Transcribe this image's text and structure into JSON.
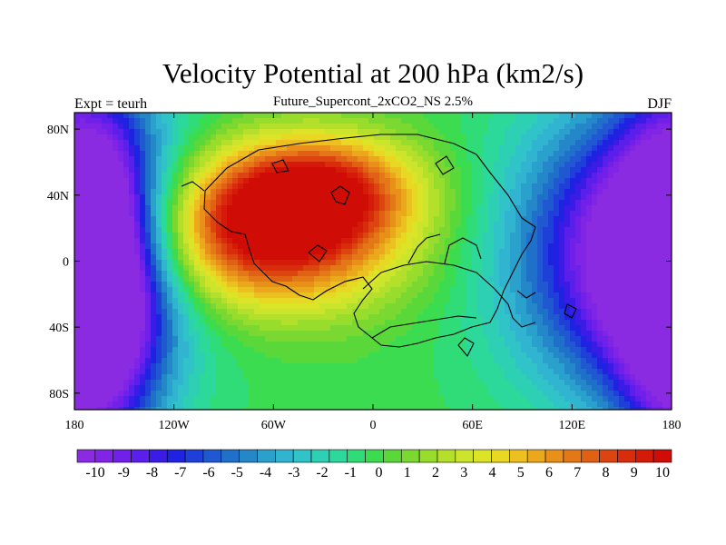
{
  "title": "Velocity Potential at 200 hPa (km2/s)",
  "subtitle": "Future_Supercont_2xCO2_NS 2.5%",
  "left_label": "Expt = teurh",
  "right_label": "DJF",
  "x_ticks": [
    {
      "lon": -180,
      "label": "180"
    },
    {
      "lon": -120,
      "label": "120W"
    },
    {
      "lon": -60,
      "label": "60W"
    },
    {
      "lon": 0,
      "label": "0"
    },
    {
      "lon": 60,
      "label": "60E"
    },
    {
      "lon": 120,
      "label": "120E"
    },
    {
      "lon": 180,
      "label": "180"
    }
  ],
  "y_ticks": [
    {
      "lat": 80,
      "label": "80N"
    },
    {
      "lat": 40,
      "label": "40N"
    },
    {
      "lat": 0,
      "label": "0"
    },
    {
      "lat": -40,
      "label": "40S"
    },
    {
      "lat": -80,
      "label": "80S"
    }
  ],
  "colorbar": {
    "labels": [
      "-10",
      "-9",
      "-8",
      "-7",
      "-6",
      "-5",
      "-4",
      "-3",
      "-2",
      "-1",
      "0",
      "1",
      "2",
      "3",
      "4",
      "5",
      "6",
      "7",
      "8",
      "9",
      "10"
    ],
    "colors": [
      "#8a2be2",
      "#8025e6",
      "#7020e8",
      "#5a1fea",
      "#3a1ce6",
      "#1f22e0",
      "#1f40d8",
      "#1f58d0",
      "#1f70c8",
      "#2488c8",
      "#2aa0cc",
      "#30b4d0",
      "#30c4c8",
      "#2ed0b4",
      "#2cd89a",
      "#30dc78",
      "#3cdc50",
      "#5ad83a",
      "#7ad830",
      "#98dc2c",
      "#b4e02c",
      "#cce42c",
      "#dce428",
      "#e8d824",
      "#ecc020",
      "#eca81c",
      "#e8901a",
      "#e47818",
      "#e06014",
      "#dc4410",
      "#d82c0c",
      "#d41a08",
      "#d00c06"
    ]
  },
  "map": {
    "lon_range": [
      -180,
      180
    ],
    "lat_range": [
      -90,
      90
    ],
    "field_range": [
      -10,
      10
    ],
    "field_centers": [
      {
        "lon": -65,
        "lat": 18,
        "value": 11,
        "sx": 55,
        "sy": 32
      },
      {
        "lon": -30,
        "lat": 45,
        "value": 6,
        "sx": 40,
        "sy": 22
      },
      {
        "lon": -170,
        "lat": -15,
        "value": -10.5,
        "sx": 28,
        "sy": 80
      },
      {
        "lon": 165,
        "lat": 5,
        "value": -11,
        "sx": 55,
        "sy": 60
      }
    ]
  }
}
